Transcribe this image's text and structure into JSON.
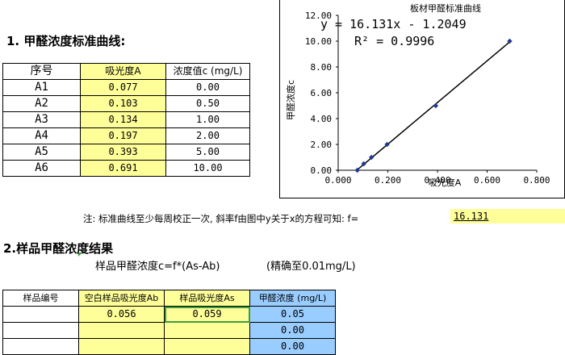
{
  "section1": {
    "title": "1.  甲醛浓度标准曲线:"
  },
  "std_table": {
    "headers": [
      "序号",
      "吸光度A",
      "浓度值c (mg/L)"
    ],
    "rows": [
      {
        "id": "A1",
        "abs": "0.077",
        "conc": "0.00"
      },
      {
        "id": "A2",
        "abs": "0.103",
        "conc": "0.50"
      },
      {
        "id": "A3",
        "abs": "0.134",
        "conc": "1.00"
      },
      {
        "id": "A4",
        "abs": "0.197",
        "conc": "2.00"
      },
      {
        "id": "A5",
        "abs": "0.393",
        "conc": "5.00"
      },
      {
        "id": "A6",
        "abs": "0.691",
        "conc": "10.00"
      }
    ]
  },
  "note": {
    "text": "注: 标准曲线至少每周校正一次, 斜率f由图中y关于x的方程可知: f=",
    "f_value": "16.131"
  },
  "section2": {
    "title": "2.样品甲醛浓度结果",
    "formula": "样品甲醛浓度c=f*(As-Ab)",
    "precision": "(精确至0.01mg/L)"
  },
  "sample_table": {
    "headers": [
      "样品编号",
      "空白样品吸光度Ab",
      "样品吸光度As",
      "甲醛浓度 (mg/L)"
    ],
    "rows": [
      {
        "id": "",
        "blank": "0.056",
        "sample": "0.059",
        "conc": "0.05"
      },
      {
        "id": "",
        "blank": "",
        "sample": "",
        "conc": "0.00"
      },
      {
        "id": "",
        "blank": "",
        "sample": "",
        "conc": "0.00"
      }
    ]
  },
  "chart_data": {
    "type": "scatter",
    "title": "板材甲醛标准曲线",
    "xlabel": "吸光度A",
    "ylabel": "甲醛浓度c",
    "xlim": [
      0,
      0.8
    ],
    "ylim": [
      0,
      12
    ],
    "x_ticks": [
      "0.000",
      "0.200",
      "0.400",
      "0.600",
      "0.800"
    ],
    "y_ticks": [
      "0.00",
      "2.00",
      "4.00",
      "6.00",
      "8.00",
      "10.00",
      "12.00"
    ],
    "series": [
      {
        "x": [
          0.077,
          0.103,
          0.134,
          0.197,
          0.393,
          0.691
        ],
        "y": [
          0.0,
          0.5,
          1.0,
          2.0,
          5.0,
          10.0
        ]
      }
    ],
    "trendline": {
      "slope": 16.131,
      "intercept": -1.2049
    },
    "equation": "y = 16.131x - 1.2049",
    "r2": "R² = 0.9996",
    "marker_color": "#1f3a93",
    "line_color": "#000000"
  }
}
